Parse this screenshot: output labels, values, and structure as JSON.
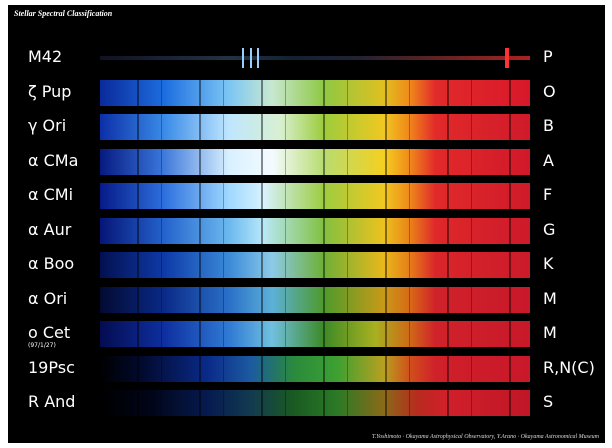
{
  "header": {
    "title": "Stellar Spectral Classification"
  },
  "rows": [
    {
      "name": "M42",
      "class": "P"
    },
    {
      "name": "ζ Pup",
      "class": "O"
    },
    {
      "name": "γ Ori",
      "class": "B"
    },
    {
      "name": "α CMa",
      "class": "A"
    },
    {
      "name": "α CMi",
      "class": "F"
    },
    {
      "name": "α Aur",
      "class": "G"
    },
    {
      "name": "α Boo",
      "class": "K"
    },
    {
      "name": "α Ori",
      "class": "M"
    },
    {
      "name": "o Cet",
      "note": "(97/1/27)",
      "class": "M"
    },
    {
      "name": "19Psc",
      "class": "R,N(C)"
    },
    {
      "name": "R And",
      "class": "S"
    }
  ],
  "footer": {
    "credit": "T.Yoshimoto · Okayama Astrophysical Observatory, Y.Arano · Okayama Astronomical Museum"
  }
}
